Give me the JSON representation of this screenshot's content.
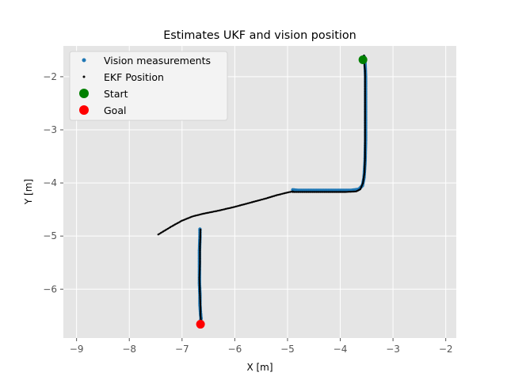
{
  "chart_data": {
    "type": "scatter",
    "title": "Estimates UKF and vision position",
    "xlabel": "X [m]",
    "ylabel": "Y [m]",
    "xlim": [
      -9.25,
      -1.8
    ],
    "ylim": [
      -6.92,
      -1.42
    ],
    "xticks": [
      -9,
      -8,
      -7,
      -6,
      -5,
      -4,
      -3,
      -2
    ],
    "yticks": [
      -2,
      -3,
      -4,
      -5,
      -6
    ],
    "xtick_labels": [
      "−9",
      "−8",
      "−7",
      "−6",
      "−5",
      "−4",
      "−3",
      "−2"
    ],
    "ytick_labels": [
      "−2",
      "−3",
      "−4",
      "−5",
      "−6"
    ],
    "grid": true,
    "legend_position": "upper-left",
    "colors": {
      "background": "#e5e5e5",
      "grid": "#ffffff",
      "vision": "#1f77b4",
      "ekf": "#000000",
      "start": "#008000",
      "goal": "#ff0000"
    },
    "series": [
      {
        "name": "Vision measurements",
        "segments": [
          {
            "x": [
              -6.66,
              -6.66,
              -6.67,
              -6.67,
              -6.67,
              -6.66,
              -6.66,
              -6.65,
              -6.64,
              -6.65
            ],
            "y": [
              -4.87,
              -5.0,
              -5.3,
              -5.6,
              -5.9,
              -6.1,
              -6.3,
              -6.45,
              -6.55,
              -6.62
            ]
          },
          {
            "x": [
              -4.9,
              -4.8,
              -4.6,
              -4.4,
              -4.2,
              -4.0,
              -3.8,
              -3.65,
              -3.58,
              -3.55,
              -3.53,
              -3.52,
              -3.52,
              -3.52,
              -3.52,
              -3.53,
              -3.55
            ],
            "y": [
              -4.13,
              -4.14,
              -4.14,
              -4.14,
              -4.14,
              -4.14,
              -4.14,
              -4.12,
              -4.05,
              -3.9,
              -3.6,
              -3.2,
              -2.8,
              -2.4,
              -2.0,
              -1.75,
              -1.62
            ]
          }
        ]
      },
      {
        "name": "EKF Position",
        "segments": [
          {
            "x": [
              -6.65,
              -6.66,
              -6.66,
              -6.67,
              -6.66,
              -6.65,
              -6.65,
              -6.64
            ],
            "y": [
              -4.88,
              -5.2,
              -5.5,
              -5.8,
              -6.1,
              -6.35,
              -6.5,
              -6.6
            ]
          },
          {
            "x": [
              -7.45,
              -7.2,
              -7.0,
              -6.8,
              -6.6,
              -6.3,
              -6.0,
              -5.7,
              -5.4,
              -5.2,
              -5.0,
              -4.9
            ],
            "y": [
              -4.97,
              -4.82,
              -4.71,
              -4.63,
              -4.58,
              -4.52,
              -4.45,
              -4.37,
              -4.29,
              -4.23,
              -4.18,
              -4.16
            ]
          },
          {
            "x": [
              -4.9,
              -4.7,
              -4.5,
              -4.3,
              -4.1,
              -3.9,
              -3.7,
              -3.62,
              -3.57,
              -3.54,
              -3.53,
              -3.53,
              -3.53,
              -3.53,
              -3.53,
              -3.55,
              -3.55
            ],
            "y": [
              -4.17,
              -4.17,
              -4.17,
              -4.17,
              -4.17,
              -4.17,
              -4.16,
              -4.12,
              -4.0,
              -3.8,
              -3.5,
              -3.1,
              -2.7,
              -2.3,
              -1.9,
              -1.68,
              -1.6
            ]
          }
        ]
      }
    ],
    "start": {
      "name": "Start",
      "x": -3.57,
      "y": -1.68
    },
    "goal": {
      "name": "Goal",
      "x": -6.65,
      "y": -6.66
    }
  }
}
